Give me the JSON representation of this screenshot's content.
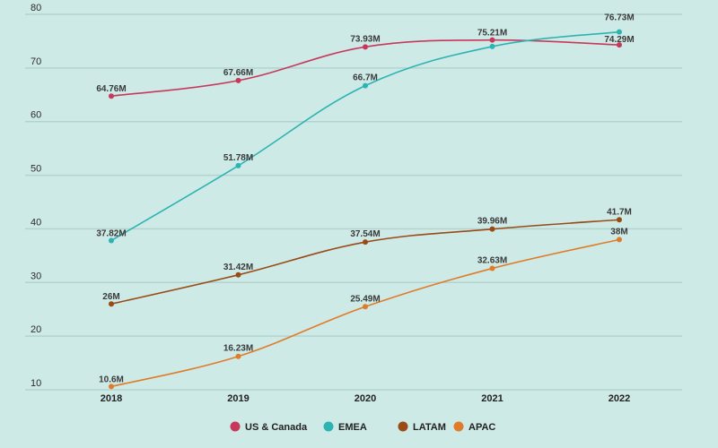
{
  "chart_data": {
    "type": "line",
    "title": "",
    "xlabel": "",
    "ylabel": "",
    "x": [
      "2018",
      "2019",
      "2020",
      "2021",
      "2022"
    ],
    "ylim": [
      10,
      80
    ],
    "yticks": [
      10,
      20,
      30,
      40,
      50,
      60,
      70,
      80
    ],
    "grid": "horizontal",
    "legend_position": "bottom-center",
    "series": [
      {
        "name": "US & Canada",
        "color": "#c8385a",
        "values": [
          64.76,
          67.66,
          73.93,
          75.21,
          74.29
        ],
        "labels": [
          "64.76M",
          "67.66M",
          "73.93M",
          "75.21M",
          "74.29M"
        ]
      },
      {
        "name": "EMEA",
        "color": "#2eb3b3",
        "values": [
          37.82,
          51.78,
          66.7,
          74.0,
          76.73
        ],
        "labels": [
          "37.82M",
          "51.78M",
          "66.7M",
          "",
          "76.73M"
        ]
      },
      {
        "name": "LATAM",
        "color": "#9a4a17",
        "values": [
          26,
          31.42,
          37.54,
          39.96,
          41.7
        ],
        "labels": [
          "26M",
          "31.42M",
          "37.54M",
          "39.96M",
          "41.7M"
        ]
      },
      {
        "name": "APAC",
        "color": "#e07b2a",
        "values": [
          10.6,
          16.23,
          25.49,
          32.63,
          38
        ],
        "labels": [
          "10.6M",
          "16.23M",
          "25.49M",
          "32.63M",
          "38M"
        ]
      }
    ]
  }
}
